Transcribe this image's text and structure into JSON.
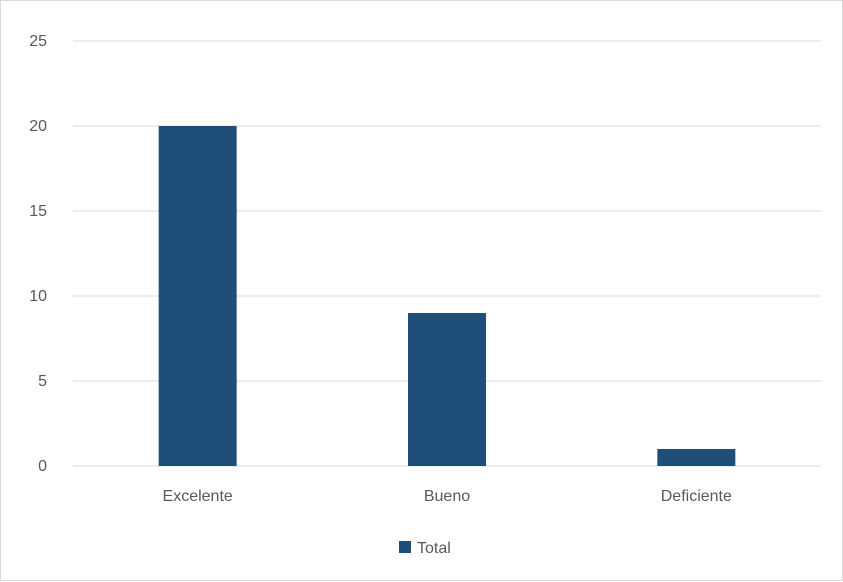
{
  "chart_data": {
    "type": "bar",
    "categories": [
      "Excelente",
      "Bueno",
      "Deficiente"
    ],
    "series": [
      {
        "name": "Total",
        "values": [
          20,
          9,
          1
        ]
      }
    ],
    "title": "",
    "xlabel": "",
    "ylabel": "",
    "ylim": [
      0,
      25
    ],
    "yticks": [
      0,
      5,
      10,
      15,
      20,
      25
    ],
    "grid": true,
    "legend_position": "bottom",
    "colors": {
      "bar": "#1f4e79",
      "grid": "#d9d9d9",
      "text": "#595959"
    }
  }
}
